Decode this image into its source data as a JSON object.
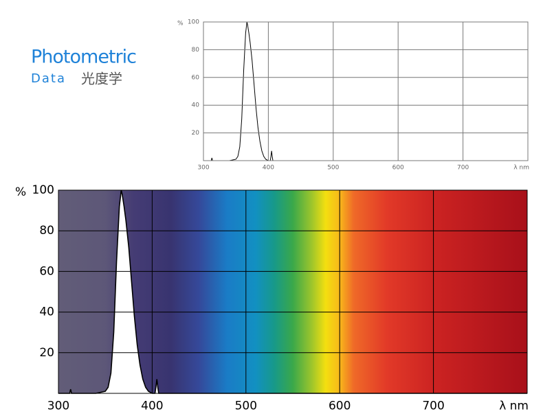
{
  "header": {
    "title": "Photometric",
    "subtitle": "Data",
    "label": "光度学"
  },
  "chart_data": [
    {
      "type": "line",
      "ylabel": "%",
      "xlabel": "λ nm",
      "x": [
        300,
        310,
        312,
        313,
        314,
        320,
        340,
        345,
        350,
        353,
        356,
        359,
        362,
        365,
        367,
        368,
        370,
        372,
        375,
        378,
        381,
        384,
        387,
        390,
        393,
        396,
        400,
        403,
        404,
        405,
        406,
        407,
        410,
        450,
        500,
        600,
        700,
        800
      ],
      "series": [
        {
          "color": "#000000",
          "values": [
            0,
            0,
            0,
            2,
            0,
            0,
            0,
            0.5,
            1,
            3,
            10,
            30,
            65,
            92,
            100,
            98,
            92,
            85,
            72,
            55,
            38,
            24,
            14,
            7,
            3,
            1,
            0,
            0,
            3,
            7,
            3,
            0,
            0,
            0,
            0,
            0,
            0,
            0
          ]
        }
      ],
      "xlim": [
        300,
        800
      ],
      "ylim": [
        0,
        100
      ],
      "xticks": [
        300,
        400,
        500,
        600,
        700
      ],
      "yticks": [
        20,
        40,
        60,
        80,
        100
      ],
      "grid": true,
      "grid_color": "#777777"
    },
    {
      "type": "line",
      "ylabel": "%",
      "xlabel": "λ nm",
      "x": [
        300,
        310,
        312,
        313,
        314,
        320,
        340,
        345,
        350,
        353,
        356,
        359,
        362,
        365,
        367,
        368,
        370,
        372,
        375,
        378,
        381,
        384,
        387,
        390,
        393,
        396,
        400,
        403,
        404,
        405,
        406,
        407,
        410,
        450,
        500,
        600,
        700,
        800
      ],
      "series": [
        {
          "color": "#000000",
          "values": [
            0,
            0,
            0,
            2,
            0,
            0,
            0,
            0.5,
            1,
            3,
            10,
            30,
            65,
            92,
            100,
            98,
            92,
            85,
            72,
            55,
            38,
            24,
            14,
            7,
            3,
            1,
            0,
            0,
            3,
            7,
            3,
            0,
            0,
            0,
            0,
            0,
            0,
            0
          ]
        }
      ],
      "xlim": [
        300,
        800
      ],
      "ylim": [
        0,
        100
      ],
      "xticks": [
        300,
        400,
        500,
        600,
        700
      ],
      "yticks": [
        20,
        40,
        60,
        80,
        100
      ],
      "grid": true,
      "grid_color": "#000000",
      "area_color": "#ffffff",
      "spectrum_background": true
    }
  ]
}
